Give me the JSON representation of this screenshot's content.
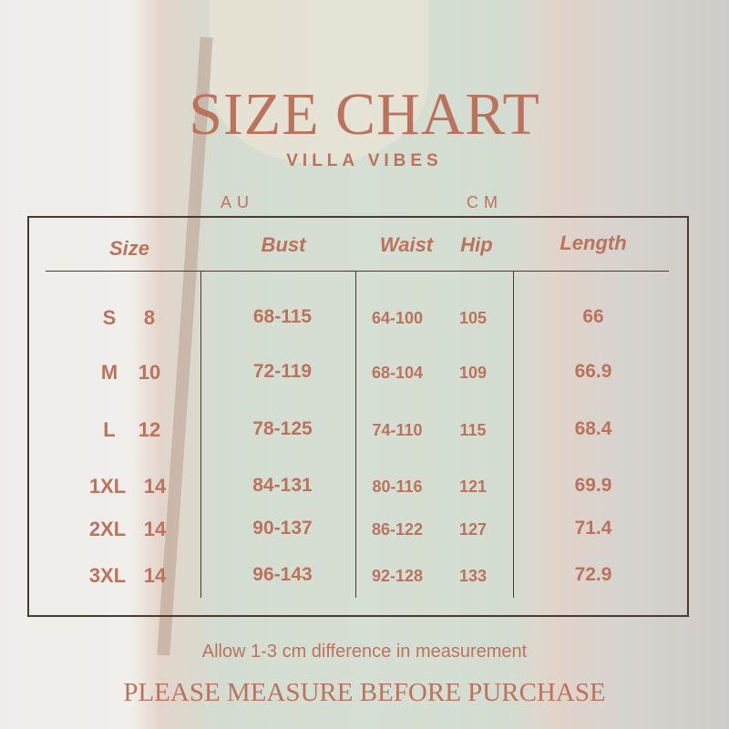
{
  "title": "SIZE CHART",
  "brand": "VILLA VIBES",
  "units": {
    "au": "AU",
    "cm": "CM"
  },
  "headers": {
    "size": "Size",
    "bust": "Bust",
    "waist": "Waist",
    "hip": "Hip",
    "length": "Length"
  },
  "rows": [
    {
      "size": "S",
      "au": "8",
      "bust": "68-115",
      "waist": "64-100",
      "hip": "105",
      "length": "66"
    },
    {
      "size": "M",
      "au": "10",
      "bust": "72-119",
      "waist": "68-104",
      "hip": "109",
      "length": "66.9"
    },
    {
      "size": "L",
      "au": "12",
      "bust": "78-125",
      "waist": "74-110",
      "hip": "115",
      "length": "68.4"
    },
    {
      "size": "1XL",
      "au": "14",
      "bust": "84-131",
      "waist": "80-116",
      "hip": "121",
      "length": "69.9"
    },
    {
      "size": "2XL",
      "au": "14",
      "bust": "90-137",
      "waist": "86-122",
      "hip": "127",
      "length": "71.4"
    },
    {
      "size": "3XL",
      "au": "14",
      "bust": "96-143",
      "waist": "92-128",
      "hip": "133",
      "length": "72.9"
    }
  ],
  "note": "Allow 1-3 cm difference in measurement",
  "footer": "PLEASE MEASURE BEFORE PURCHASE",
  "colors": {
    "text": "#bb735d",
    "border": "#4a3a32"
  }
}
